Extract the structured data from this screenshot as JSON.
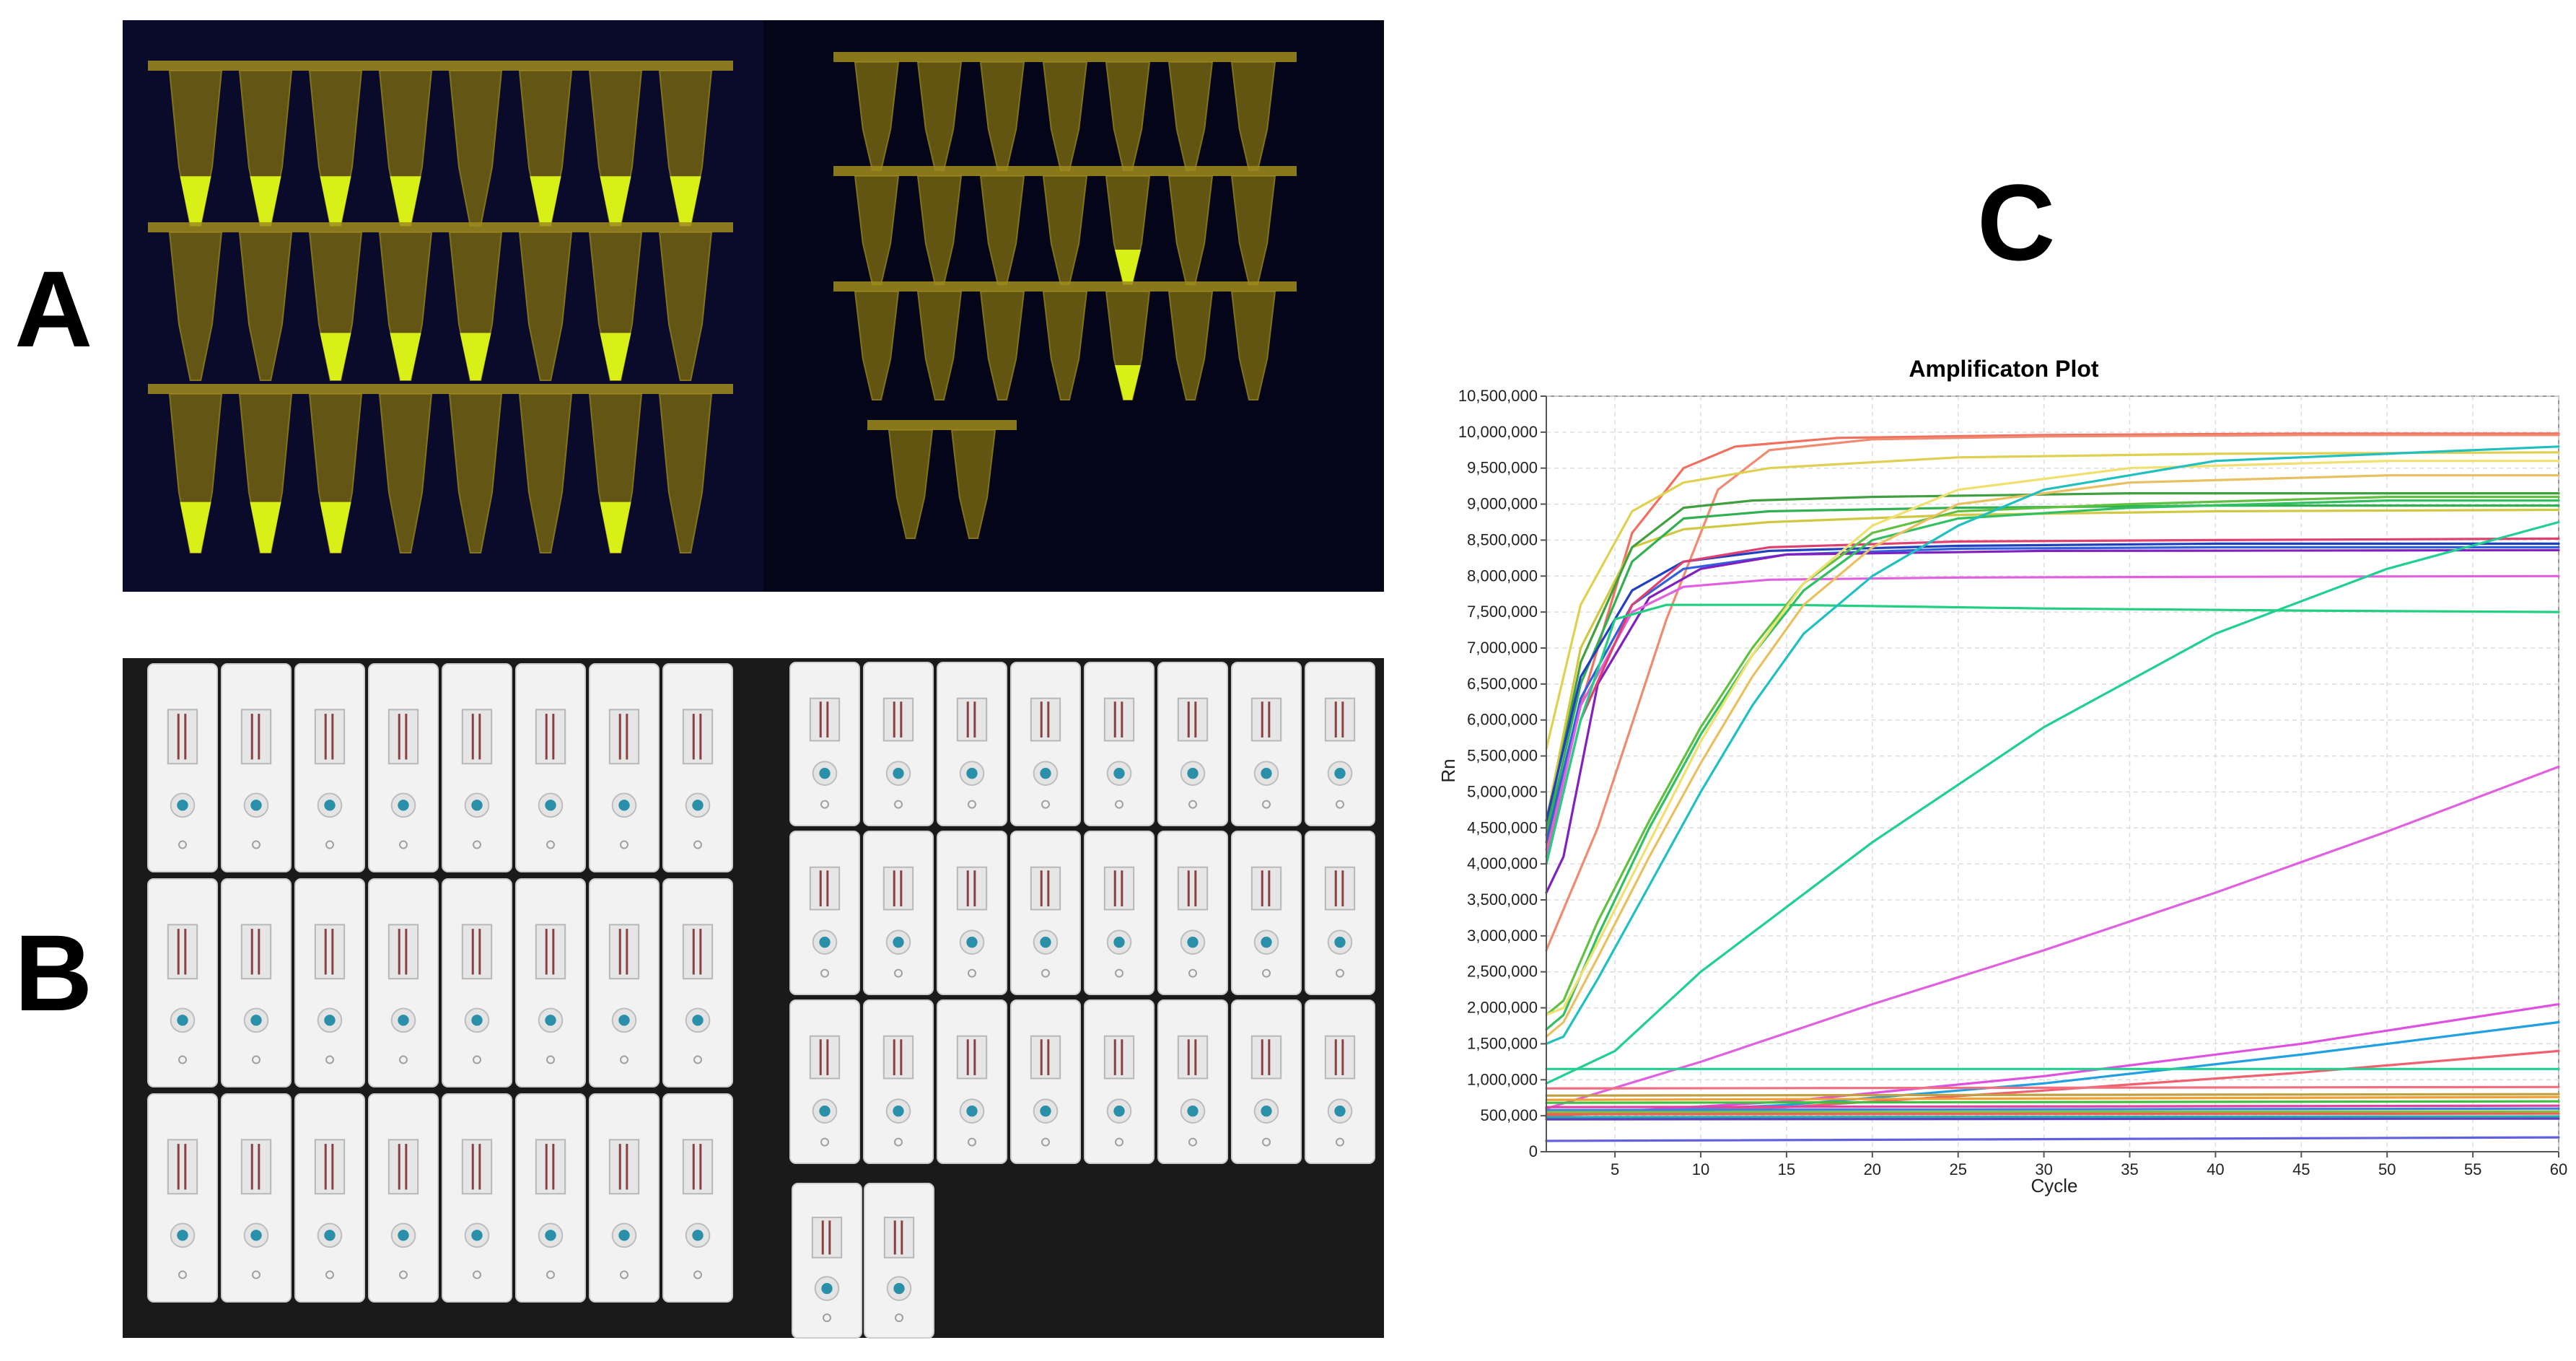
{
  "panels": {
    "a": {
      "label": "A"
    },
    "b": {
      "label": "B"
    },
    "c": {
      "label": "C"
    }
  },
  "photo_a": {
    "left_strips": [
      {
        "positive": [
          true,
          true,
          true,
          true,
          false,
          true,
          true,
          true
        ]
      },
      {
        "positive": [
          false,
          false,
          true,
          true,
          true,
          false,
          true,
          false
        ]
      },
      {
        "positive": [
          true,
          true,
          true,
          false,
          false,
          false,
          true,
          false
        ]
      }
    ],
    "right_strips": [
      {
        "positive": [
          false,
          false,
          false,
          false,
          false,
          false,
          false
        ]
      },
      {
        "positive": [
          false,
          false,
          false,
          false,
          true,
          false,
          false
        ]
      },
      {
        "positive": [
          false,
          false,
          false,
          false,
          true,
          false,
          false
        ]
      },
      {
        "positive": [
          false,
          false
        ]
      }
    ],
    "colors": {
      "background": "#0a0a2a",
      "tube": "#7a6a10",
      "fluorescent": "#d8f018",
      "tube_rim": "#a08c1c"
    }
  },
  "photo_b": {
    "colors": {
      "background": "#1a1a1a",
      "cassette": "#f2f2f2",
      "sample_well": "#2a8fa8",
      "line": "#8a4040"
    }
  },
  "chart_data": {
    "type": "line",
    "title": "Amplificaton Plot",
    "xlabel": "Cycle",
    "ylabel": "Rn",
    "xlim": [
      1,
      60
    ],
    "ylim": [
      0,
      10500000
    ],
    "x_ticks": [
      5,
      10,
      15,
      20,
      25,
      30,
      35,
      40,
      45,
      50,
      55,
      60
    ],
    "y_ticks": [
      0,
      500000,
      1000000,
      1500000,
      2000000,
      2500000,
      3000000,
      3500000,
      4000000,
      4500000,
      5000000,
      5500000,
      6000000,
      6500000,
      7000000,
      7500000,
      8000000,
      8500000,
      9000000,
      9500000,
      10000000,
      10500000
    ],
    "x_tick_labels": [
      "5",
      "10",
      "15",
      "20",
      "25",
      "30",
      "35",
      "40",
      "45",
      "50",
      "55",
      "60"
    ],
    "y_tick_labels": [
      "0",
      "500,000",
      "1,000,000",
      "1,500,000",
      "2,000,000",
      "2,500,000",
      "3,000,000",
      "3,500,000",
      "4,000,000",
      "4,500,000",
      "5,000,000",
      "5,500,000",
      "6,000,000",
      "6,500,000",
      "7,000,000",
      "7,500,000",
      "8,000,000",
      "8,500,000",
      "9,000,000",
      "9,500,000",
      "10,000,000",
      "10,500,000"
    ],
    "grid": true,
    "series": [
      {
        "color": "#f07060",
        "x": [
          1,
          3,
          6,
          9,
          12,
          18,
          30,
          45,
          60
        ],
        "y": [
          4200000,
          6200000,
          8600000,
          9500000,
          9800000,
          9920000,
          9960000,
          9980000,
          9980000
        ]
      },
      {
        "color": "#f08a70",
        "x": [
          1,
          4,
          8,
          11,
          14,
          20,
          30,
          45,
          60
        ],
        "y": [
          2800000,
          4500000,
          7400000,
          9200000,
          9750000,
          9900000,
          9940000,
          9960000,
          9960000
        ]
      },
      {
        "color": "#e0d050",
        "x": [
          1,
          3,
          6,
          9,
          14,
          25,
          40,
          60
        ],
        "y": [
          5600000,
          7600000,
          8900000,
          9300000,
          9500000,
          9650000,
          9700000,
          9720000
        ]
      },
      {
        "color": "#d0c840",
        "x": [
          1,
          3,
          6,
          9,
          14,
          25,
          40,
          60
        ],
        "y": [
          4600000,
          7000000,
          8400000,
          8650000,
          8750000,
          8850000,
          8900000,
          8920000
        ]
      },
      {
        "color": "#40a040",
        "x": [
          1,
          3,
          6,
          9,
          13,
          20,
          35,
          60
        ],
        "y": [
          4500000,
          6800000,
          8400000,
          8950000,
          9050000,
          9100000,
          9150000,
          9150000
        ]
      },
      {
        "color": "#30b050",
        "x": [
          1,
          3,
          6,
          9,
          14,
          25,
          40,
          60
        ],
        "y": [
          4400000,
          6500000,
          8200000,
          8800000,
          8900000,
          8950000,
          8980000,
          8980000
        ]
      },
      {
        "color": "#2040c0",
        "x": [
          1,
          3,
          6,
          9,
          14,
          25,
          40,
          60
        ],
        "y": [
          4600000,
          6600000,
          7800000,
          8200000,
          8350000,
          8420000,
          8450000,
          8450000
        ]
      },
      {
        "color": "#3060e0",
        "x": [
          1,
          3,
          6,
          9,
          15,
          25,
          40,
          60
        ],
        "y": [
          4300000,
          6300000,
          7600000,
          8100000,
          8300000,
          8380000,
          8400000,
          8400000
        ]
      },
      {
        "color": "#8020c0",
        "x": [
          1,
          2,
          4,
          7,
          10,
          15,
          30,
          60
        ],
        "y": [
          3600000,
          4100000,
          6500000,
          7700000,
          8100000,
          8300000,
          8350000,
          8360000
        ]
      },
      {
        "color": "#e060e0",
        "x": [
          1,
          3,
          6,
          9,
          14,
          25,
          40,
          60
        ],
        "y": [
          4100000,
          6200000,
          7500000,
          7850000,
          7950000,
          7980000,
          7990000,
          8000000
        ]
      },
      {
        "color": "#e04070",
        "x": [
          1,
          3,
          6,
          9,
          14,
          25,
          40,
          60
        ],
        "y": [
          4000000,
          6000000,
          7600000,
          8200000,
          8400000,
          8480000,
          8500000,
          8520000
        ]
      },
      {
        "color": "#20d080",
        "x": [
          1,
          3,
          5,
          8,
          15,
          30,
          45,
          60
        ],
        "y": [
          4000000,
          6000000,
          7400000,
          7600000,
          7600000,
          7550000,
          7520000,
          7500000
        ]
      },
      {
        "color": "#60c040",
        "x": [
          1,
          2,
          4,
          7,
          10,
          13,
          16,
          20,
          25,
          35,
          50,
          60
        ],
        "y": [
          1900000,
          2100000,
          3200000,
          4600000,
          5900000,
          7000000,
          7900000,
          8600000,
          8900000,
          9000000,
          9100000,
          9100000
        ]
      },
      {
        "color": "#30c060",
        "x": [
          1,
          2,
          4,
          7,
          10,
          13,
          16,
          20,
          25,
          35,
          50,
          60
        ],
        "y": [
          1700000,
          1900000,
          3000000,
          4500000,
          5800000,
          6900000,
          7800000,
          8500000,
          8800000,
          8950000,
          9050000,
          9050000
        ]
      },
      {
        "color": "#e8c060",
        "x": [
          1,
          2,
          4,
          7,
          10,
          13,
          16,
          20,
          25,
          35,
          50,
          60
        ],
        "y": [
          1600000,
          1800000,
          2700000,
          4100000,
          5400000,
          6600000,
          7600000,
          8400000,
          9000000,
          9300000,
          9400000,
          9400000
        ]
      },
      {
        "color": "#f0e070",
        "x": [
          1,
          2,
          4,
          7,
          10,
          13,
          16,
          20,
          25,
          35,
          50,
          60
        ],
        "y": [
          1900000,
          2000000,
          2900000,
          4300000,
          5700000,
          6900000,
          7900000,
          8700000,
          9200000,
          9500000,
          9600000,
          9600000
        ]
      },
      {
        "color": "#20c0c0",
        "x": [
          1,
          2,
          4,
          7,
          10,
          13,
          16,
          20,
          25,
          30,
          40,
          60
        ],
        "y": [
          1500000,
          1600000,
          2400000,
          3700000,
          5000000,
          6200000,
          7200000,
          8000000,
          8700000,
          9200000,
          9600000,
          9800000
        ]
      },
      {
        "color": "#20d090",
        "x": [
          1,
          5,
          10,
          20,
          30,
          40,
          50,
          60
        ],
        "y": [
          950000,
          1400000,
          2500000,
          4300000,
          5900000,
          7200000,
          8100000,
          8750000
        ]
      },
      {
        "color": "#e060e0",
        "x": [
          1,
          10,
          20,
          30,
          40,
          50,
          60
        ],
        "y": [
          600000,
          1250000,
          2050000,
          2800000,
          3600000,
          4450000,
          5350000
        ]
      },
      {
        "color": "#e050e0",
        "x": [
          1,
          15,
          30,
          45,
          60
        ],
        "y": [
          500000,
          700000,
          1050000,
          1500000,
          2050000
        ]
      },
      {
        "color": "#20a0e0",
        "x": [
          1,
          15,
          30,
          45,
          60
        ],
        "y": [
          500000,
          650000,
          950000,
          1350000,
          1800000
        ]
      },
      {
        "color": "#f06070",
        "x": [
          1,
          15,
          30,
          45,
          60
        ],
        "y": [
          500000,
          620000,
          850000,
          1100000,
          1400000
        ]
      },
      {
        "color": "#20d090",
        "x": [
          1,
          60
        ],
        "y": [
          1150000,
          1150000
        ]
      },
      {
        "color": "#f07080",
        "x": [
          1,
          60
        ],
        "y": [
          880000,
          900000
        ]
      },
      {
        "color": "#c0a040",
        "x": [
          1,
          60
        ],
        "y": [
          780000,
          800000
        ]
      },
      {
        "color": "#f0a030",
        "x": [
          1,
          60
        ],
        "y": [
          720000,
          760000
        ]
      },
      {
        "color": "#40c040",
        "x": [
          1,
          60
        ],
        "y": [
          680000,
          700000
        ]
      },
      {
        "color": "#e040a0",
        "x": [
          1,
          60
        ],
        "y": [
          620000,
          640000
        ]
      },
      {
        "color": "#4080e0",
        "x": [
          1,
          60
        ],
        "y": [
          580000,
          600000
        ]
      },
      {
        "color": "#80c040",
        "x": [
          1,
          60
        ],
        "y": [
          550000,
          560000
        ]
      },
      {
        "color": "#f06050",
        "x": [
          1,
          60
        ],
        "y": [
          520000,
          530000
        ]
      },
      {
        "color": "#20b0b0",
        "x": [
          1,
          60
        ],
        "y": [
          480000,
          490000
        ]
      },
      {
        "color": "#6040c0",
        "x": [
          1,
          60
        ],
        "y": [
          450000,
          460000
        ]
      },
      {
        "color": "#6060e0",
        "x": [
          1,
          60
        ],
        "y": [
          150000,
          200000
        ]
      }
    ]
  }
}
